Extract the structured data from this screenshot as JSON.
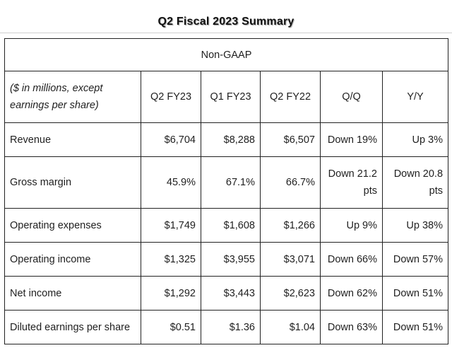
{
  "title": "Q2 Fiscal 2023 Summary",
  "table": {
    "group_header": "Non-GAAP",
    "header_label": "($ in millions, except earnings per share)",
    "columns": [
      "Q2 FY23",
      "Q1 FY23",
      "Q2 FY22",
      "Q/Q",
      "Y/Y"
    ],
    "rows": [
      {
        "label": "Revenue",
        "values": [
          "$6,704",
          "$8,288",
          "$6,507",
          "Down 19%",
          "Up 3%"
        ]
      },
      {
        "label": "Gross margin",
        "values": [
          "45.9%",
          "67.1%",
          "66.7%",
          "Down 21.2 pts",
          "Down 20.8 pts"
        ]
      },
      {
        "label": "Operating expenses",
        "values": [
          "$1,749",
          "$1,608",
          "$1,266",
          "Up 9%",
          "Up 38%"
        ]
      },
      {
        "label": "Operating income",
        "values": [
          "$1,325",
          "$3,955",
          "$3,071",
          "Down 66%",
          "Down 57%"
        ]
      },
      {
        "label": "Net income",
        "values": [
          "$1,292",
          "$3,443",
          "$2,623",
          "Down 62%",
          "Down 51%"
        ]
      },
      {
        "label": "Diluted earnings per share",
        "values": [
          "$0.51",
          "$1.36",
          "$1.04",
          "Down 63%",
          "Down 51%"
        ]
      }
    ]
  }
}
